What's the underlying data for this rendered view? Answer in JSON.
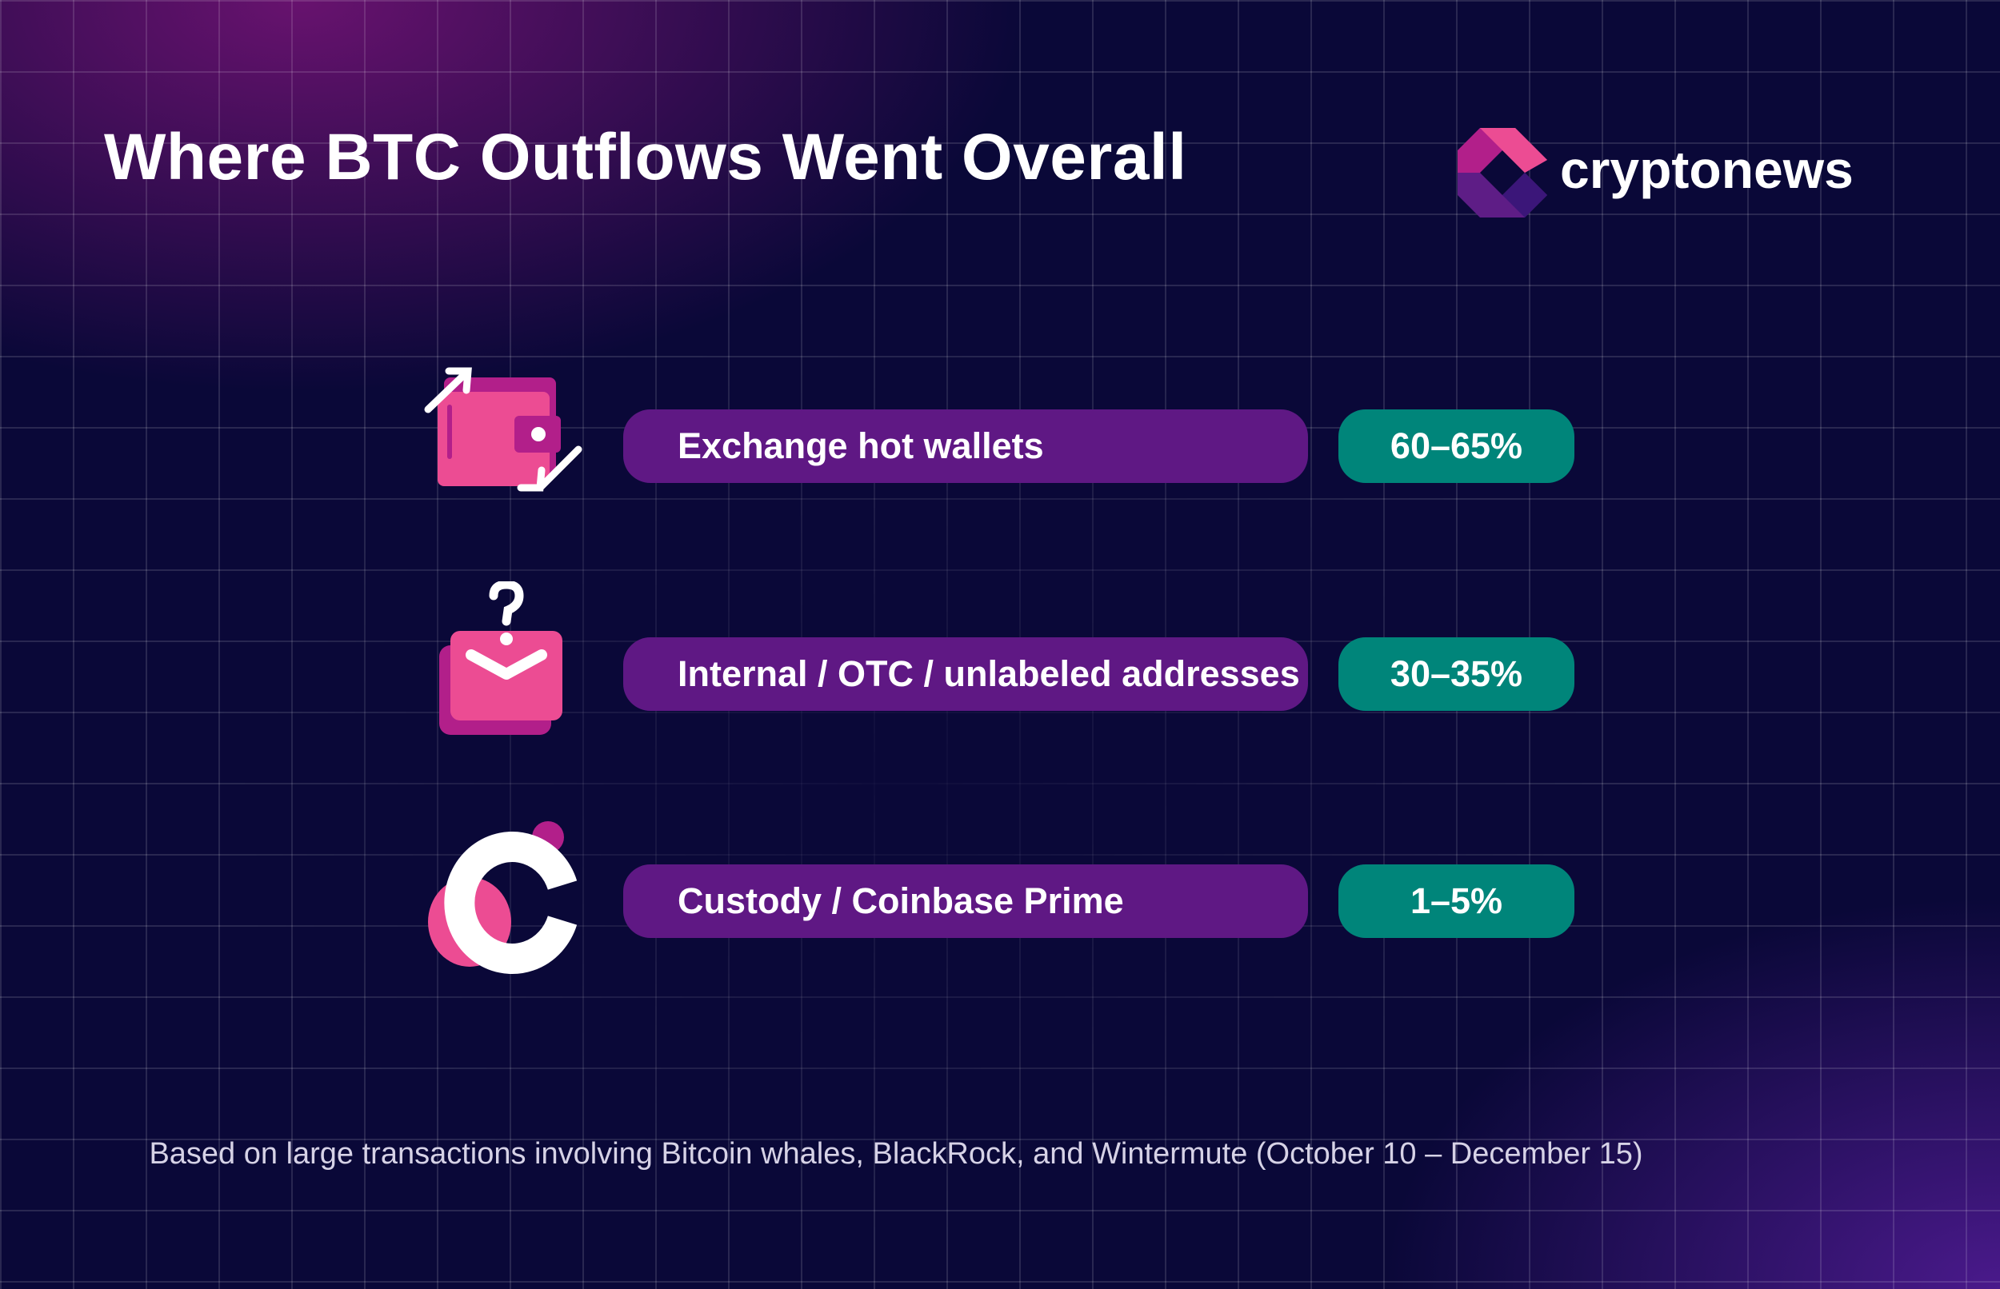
{
  "title": "Where BTC Outflows Went Overall",
  "brand": {
    "name": "cryptonews",
    "colors": [
      "#ec4c93",
      "#b21f8a",
      "#5e1d86",
      "#3b1679"
    ]
  },
  "rows": [
    {
      "icon": "wallet-transfer-icon",
      "label": "Exchange hot wallets",
      "value": "60–65%"
    },
    {
      "icon": "question-envelope-icon",
      "label": "Internal / OTC / unlabeled addresses",
      "value": "30–35%"
    },
    {
      "icon": "coinbase-icon",
      "label": "Custody / Coinbase Prime",
      "value": "1–5%"
    }
  ],
  "colors": {
    "label_pill": "#5f1884",
    "value_pill": "#00857a",
    "icon_pink": "#ec4c93",
    "icon_magenta": "#b21f8a"
  },
  "footer": "Based on large transactions involving Bitcoin whales, BlackRock, and Wintermute (October 10 – December 15)"
}
